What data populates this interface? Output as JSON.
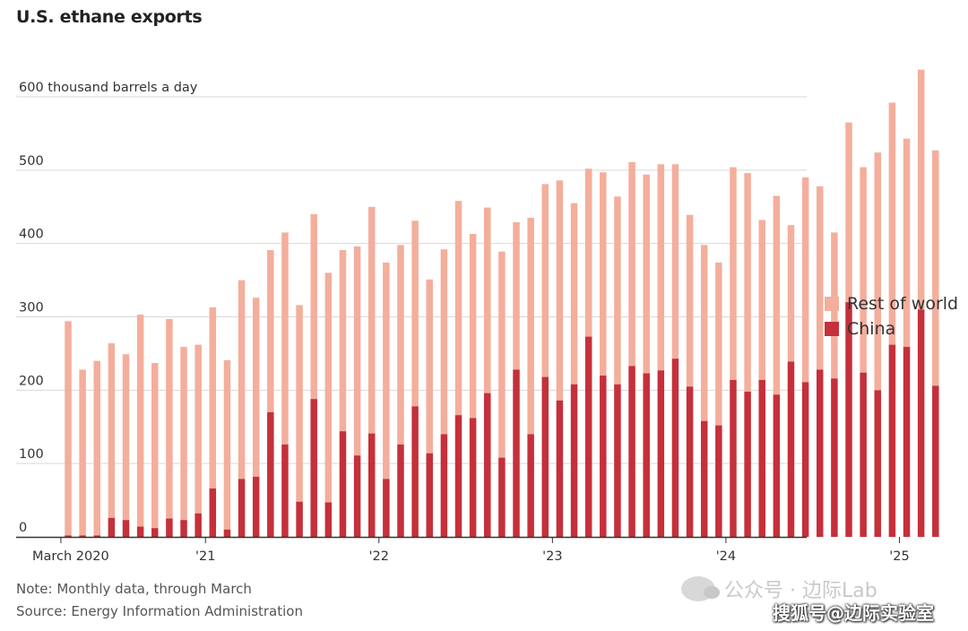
{
  "title": "U.S. ethane exports",
  "note": "Note: Monthly data, through March",
  "source": "Source: Energy Information Administration",
  "watermark": {
    "line1": "公众号 · 边际Lab",
    "line2": "搜狐号@边际实验室"
  },
  "colors": {
    "rest_of_world": "#f4ae9c",
    "china": "#c5303a",
    "grid": "#d9d9d9",
    "axis": "#333333"
  },
  "chart_data": {
    "type": "bar",
    "stacked": true,
    "title": "U.S. ethane exports",
    "ylabel": "600 thousand barrels a day",
    "ylim": [
      0,
      600
    ],
    "yticks": [
      {
        "value": 0,
        "label": "0"
      },
      {
        "value": 100,
        "label": "100"
      },
      {
        "value": 200,
        "label": "200"
      },
      {
        "value": 300,
        "label": "300"
      },
      {
        "value": 400,
        "label": "400"
      },
      {
        "value": 500,
        "label": "500"
      },
      {
        "value": 600,
        "label": "600 thousand barrels a day"
      }
    ],
    "grid": true,
    "legend_position": "right",
    "x_tick_labels": [
      {
        "index": 0,
        "label": "March 2020"
      },
      {
        "index": 10,
        "label": "'21"
      },
      {
        "index": 22,
        "label": "'22"
      },
      {
        "index": 34,
        "label": "'23"
      },
      {
        "index": 46,
        "label": "'24"
      },
      {
        "index": 58,
        "label": "'25"
      }
    ],
    "categories": [
      "2020-03",
      "2020-04",
      "2020-05",
      "2020-06",
      "2020-07",
      "2020-08",
      "2020-09",
      "2020-10",
      "2020-11",
      "2020-12",
      "2021-01",
      "2021-02",
      "2021-03",
      "2021-04",
      "2021-05",
      "2021-06",
      "2021-07",
      "2021-08",
      "2021-09",
      "2021-10",
      "2021-11",
      "2021-12",
      "2022-01",
      "2022-02",
      "2022-03",
      "2022-04",
      "2022-05",
      "2022-06",
      "2022-07",
      "2022-08",
      "2022-09",
      "2022-10",
      "2022-11",
      "2022-12",
      "2023-01",
      "2023-02",
      "2023-03",
      "2023-04",
      "2023-05",
      "2023-06",
      "2023-07",
      "2023-08",
      "2023-09",
      "2023-10",
      "2023-11",
      "2023-12",
      "2024-01",
      "2024-02",
      "2024-03",
      "2024-04",
      "2024-05",
      "2024-06",
      "2024-07",
      "2024-08",
      "2024-09",
      "2024-10",
      "2024-11",
      "2024-12",
      "2025-01",
      "2025-02",
      "2025-03"
    ],
    "series": [
      {
        "name": "China",
        "color": "#c5303a",
        "values": [
          2,
          2,
          2,
          26,
          23,
          14,
          12,
          25,
          23,
          32,
          66,
          10,
          79,
          82,
          170,
          126,
          48,
          188,
          47,
          144,
          111,
          141,
          79,
          126,
          178,
          114,
          140,
          166,
          162,
          196,
          108,
          228,
          140,
          218,
          186,
          208,
          273,
          220,
          208,
          233,
          223,
          227,
          243,
          205,
          158,
          152,
          214,
          198,
          214,
          194,
          239,
          211,
          228,
          216,
          320,
          224,
          200,
          262,
          259,
          310,
          206
        ]
      },
      {
        "name": "Rest of world",
        "color": "#f4ae9c",
        "values": [
          292,
          226,
          238,
          238,
          226,
          289,
          225,
          272,
          236,
          230,
          247,
          231,
          271,
          244,
          221,
          289,
          268,
          252,
          313,
          247,
          285,
          309,
          295,
          272,
          253,
          237,
          252,
          292,
          251,
          253,
          281,
          201,
          295,
          263,
          300,
          247,
          229,
          277,
          256,
          278,
          271,
          281,
          265,
          234,
          240,
          222,
          290,
          298,
          218,
          271,
          186,
          279,
          250,
          199,
          245,
          280,
          324,
          330,
          284,
          327,
          321
        ]
      }
    ]
  }
}
